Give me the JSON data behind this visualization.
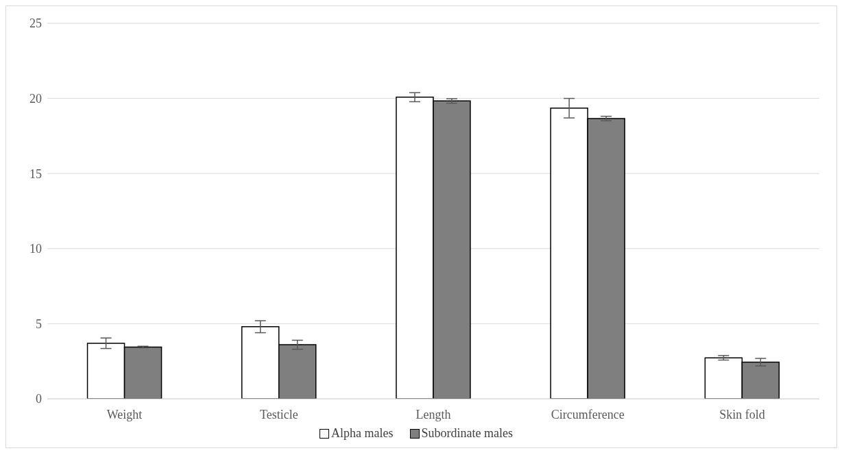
{
  "chart_data": {
    "type": "bar",
    "categories": [
      "Weight",
      "Testicle",
      "Length",
      "Circumference",
      "Skin fold"
    ],
    "series": [
      {
        "name": "Alpha males",
        "color": "#ffffff",
        "values": [
          3.7,
          4.8,
          20.08,
          19.35,
          2.73
        ],
        "errors": [
          0.35,
          0.4,
          0.3,
          0.65,
          0.15
        ]
      },
      {
        "name": "Subordinate males",
        "color": "#7f7f7f",
        "values": [
          3.45,
          3.6,
          19.83,
          18.66,
          2.44
        ],
        "errors": [
          0.05,
          0.3,
          0.15,
          0.15,
          0.25
        ]
      }
    ],
    "ylim": [
      0,
      25
    ],
    "yticks": [
      0,
      5,
      10,
      15,
      20,
      25
    ],
    "grid": "y",
    "legend": "bottom"
  }
}
